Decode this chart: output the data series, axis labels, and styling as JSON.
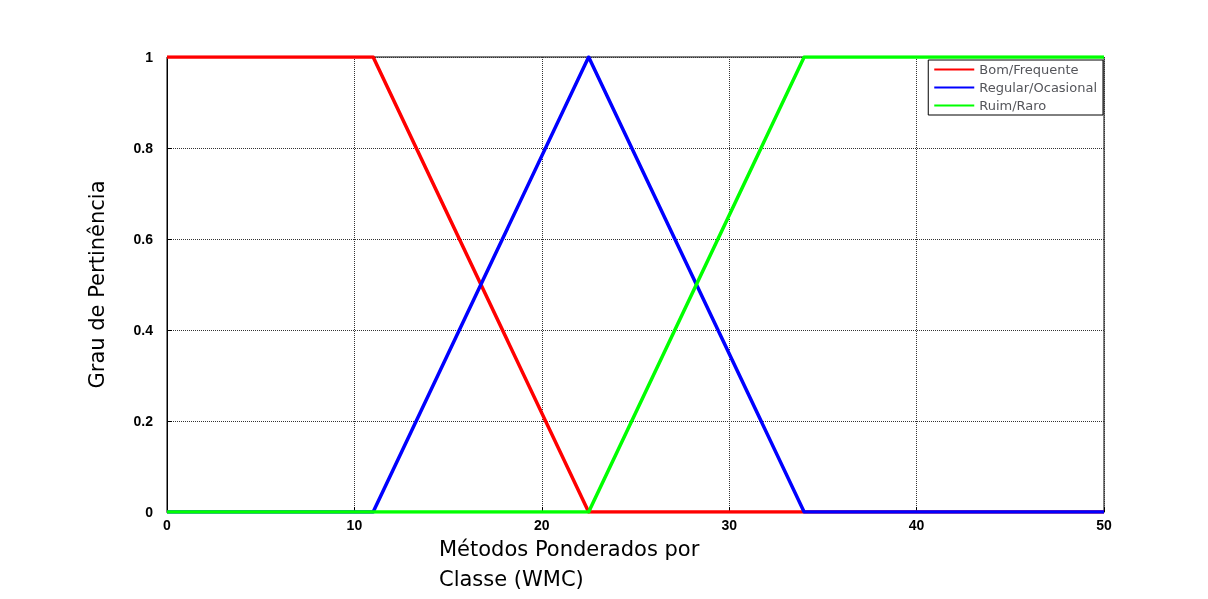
{
  "chart_data": {
    "type": "line",
    "xlabel": "Métodos Ponderados por Classe (WMC)",
    "ylabel": "Grau de Pertinência",
    "xlim": [
      0,
      50
    ],
    "xticks": [
      0,
      10,
      20,
      30,
      40,
      50
    ],
    "ylim": [
      0,
      1
    ],
    "yticks": [
      0,
      0.2,
      0.4,
      0.6,
      0.8,
      1
    ],
    "grid": true,
    "legend": "top right",
    "marker": "none",
    "line_style": "solid",
    "series": [
      {
        "name": "Bom/Frequente",
        "color": "#ff0000",
        "x": [
          0,
          11,
          22.5,
          50
        ],
        "values": [
          1,
          1,
          0,
          0
        ]
      },
      {
        "name": "Regular/Ocasional",
        "color": "#0000ff",
        "x": [
          0,
          11,
          22.5,
          34,
          50
        ],
        "values": [
          0,
          0,
          1,
          0,
          0
        ]
      },
      {
        "name": "Ruim/Raro",
        "color": "#00ff00",
        "x": [
          0,
          22.5,
          34,
          50
        ],
        "values": [
          0,
          0,
          1,
          1
        ]
      }
    ]
  }
}
